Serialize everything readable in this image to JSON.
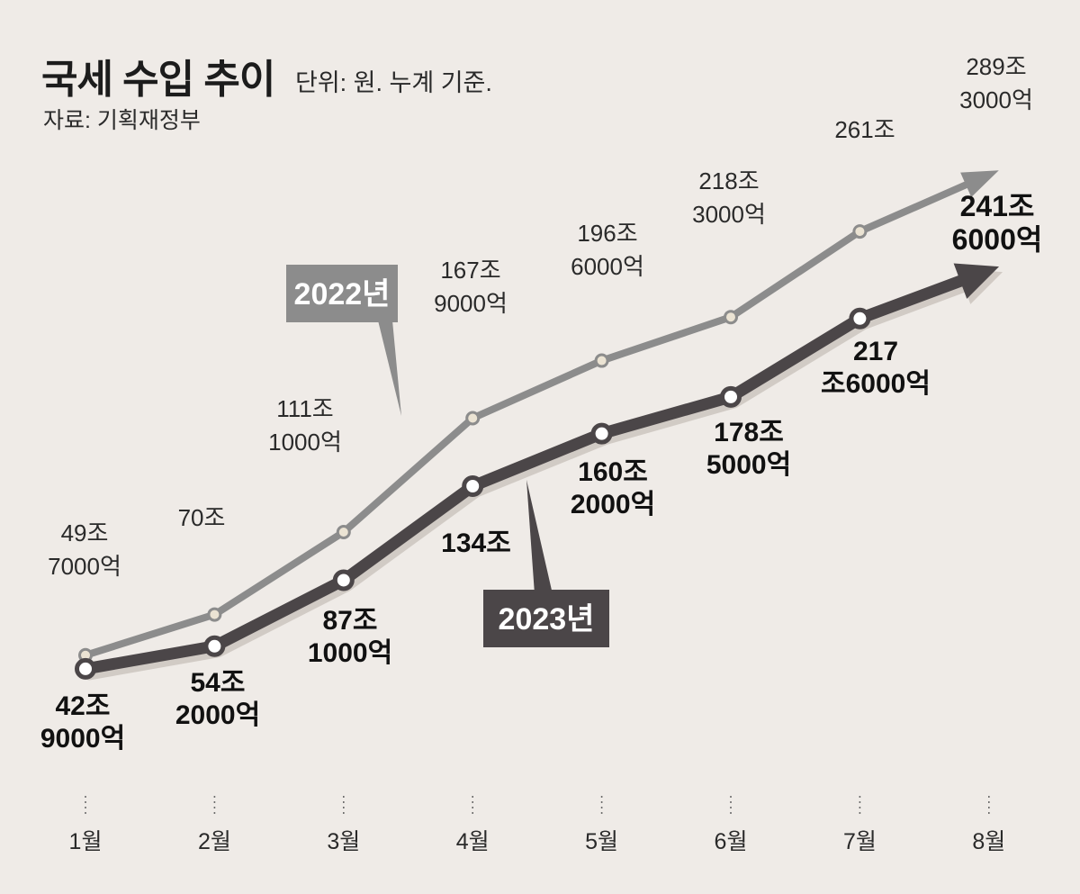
{
  "header": {
    "title": "국세 수입 추이",
    "unit": "단위: 원. 누계 기준.",
    "source": "자료: 기획재정부"
  },
  "chart_data": {
    "type": "line",
    "categories": [
      "1월",
      "2월",
      "3월",
      "4월",
      "5월",
      "6월",
      "7월",
      "8월"
    ],
    "series": [
      {
        "name": "2022년",
        "values": [
          49.7,
          70,
          111.1,
          167.9,
          196.6,
          218.3,
          261,
          289.3
        ],
        "labels": [
          [
            "49조",
            "7000억"
          ],
          [
            "70조"
          ],
          [
            "111조",
            "1000억"
          ],
          [
            "167조",
            "9000억"
          ],
          [
            "196조",
            "6000억"
          ],
          [
            "218조",
            "3000억"
          ],
          [
            "261조"
          ],
          [
            "289조",
            "3000억"
          ]
        ],
        "color": "#8c8c8c",
        "point_fill": "#ebe3d3"
      },
      {
        "name": "2023년",
        "values": [
          42.9,
          54.2,
          87.1,
          134,
          160.2,
          178.5,
          217.6,
          241.6
        ],
        "labels": [
          [
            "42조",
            "9000억"
          ],
          [
            "54조",
            "2000억"
          ],
          [
            "87조",
            "1000억"
          ],
          [
            "134조"
          ],
          [
            "160조",
            "2000억"
          ],
          [
            "178조",
            "5000억"
          ],
          [
            "217",
            "조6000억"
          ],
          [
            "241조",
            "6000억"
          ]
        ],
        "color": "#4b4648",
        "point_fill": "#ffffff"
      }
    ],
    "arrow_at_last_point": true,
    "grid": false,
    "legend": "callout labels on lines"
  }
}
